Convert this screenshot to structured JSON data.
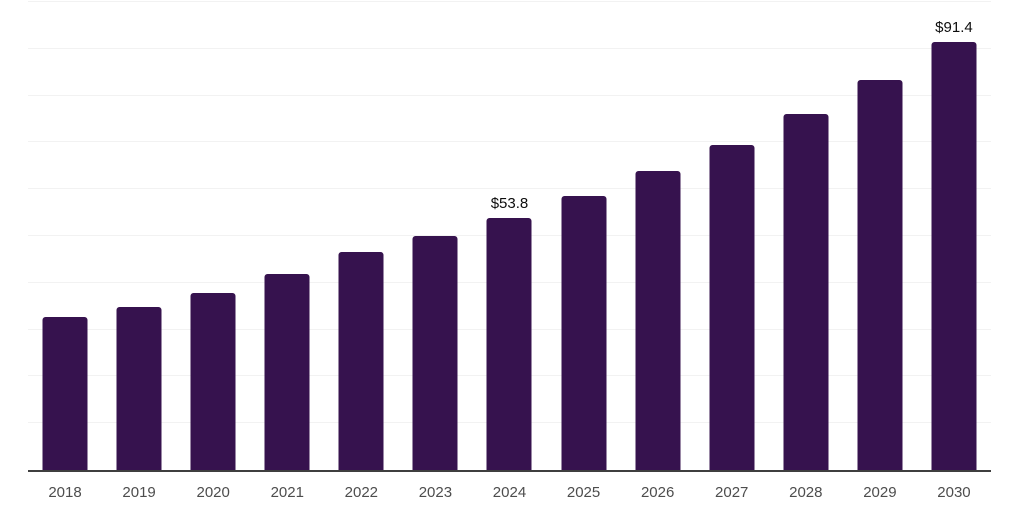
{
  "chart_data": {
    "type": "bar",
    "title": "",
    "xlabel": "",
    "ylabel": "",
    "categories": [
      "2018",
      "2019",
      "2020",
      "2021",
      "2022",
      "2023",
      "2024",
      "2025",
      "2026",
      "2027",
      "2028",
      "2029",
      "2030"
    ],
    "values": [
      32.7,
      34.9,
      37.8,
      41.9,
      46.5,
      50.0,
      53.8,
      58.5,
      63.8,
      69.4,
      76.1,
      83.4,
      91.4
    ],
    "data_labels": [
      {
        "index": 6,
        "text": "$53.8"
      },
      {
        "index": 12,
        "text": "$91.4"
      }
    ],
    "ylim": [
      0,
      100
    ],
    "gridline_step": 10,
    "grid": "horizontal",
    "legend": "none",
    "colors": {
      "bar": "#36124e",
      "axis_line": "#3f3f3f",
      "gridline": "#f2f2f2",
      "tick_label": "#4d4d4d",
      "data_label": "#0d0d0d"
    }
  }
}
